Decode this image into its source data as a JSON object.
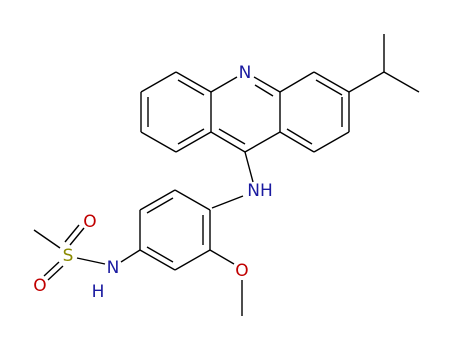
{
  "atoms": {
    "acridine_n": "N",
    "amine": "NH",
    "methoxy_o": "O",
    "sulfur": "S",
    "sulfonyl_o1": "O",
    "sulfonyl_o2": "O",
    "sulfonamide_n": "N",
    "sulfonamide_h": "H"
  }
}
